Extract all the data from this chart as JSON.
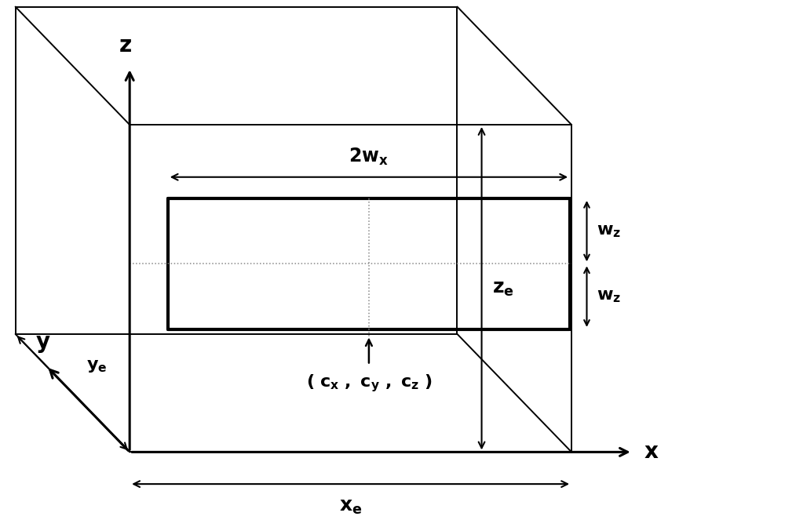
{
  "background_color": "#ffffff",
  "line_color": "#000000",
  "dashed_line_color": "#888888",
  "figsize": [
    10.0,
    6.63
  ],
  "dpi": 100,
  "labels": {
    "x_axis": "x",
    "y_axis": "y",
    "z_axis": "z",
    "xe": "x$_e$",
    "ye": "y$_e$",
    "ze": "z$_e$",
    "wx": "2w$_x$",
    "wz_top": "w$_z$",
    "wz_bot": "w$_z$",
    "center": "( $\\mathbf{c_x}$ , $\\mathbf{c_y}$ , $\\mathbf{c_z}$ )"
  },
  "font_size": 16,
  "font_size_axis": 20
}
